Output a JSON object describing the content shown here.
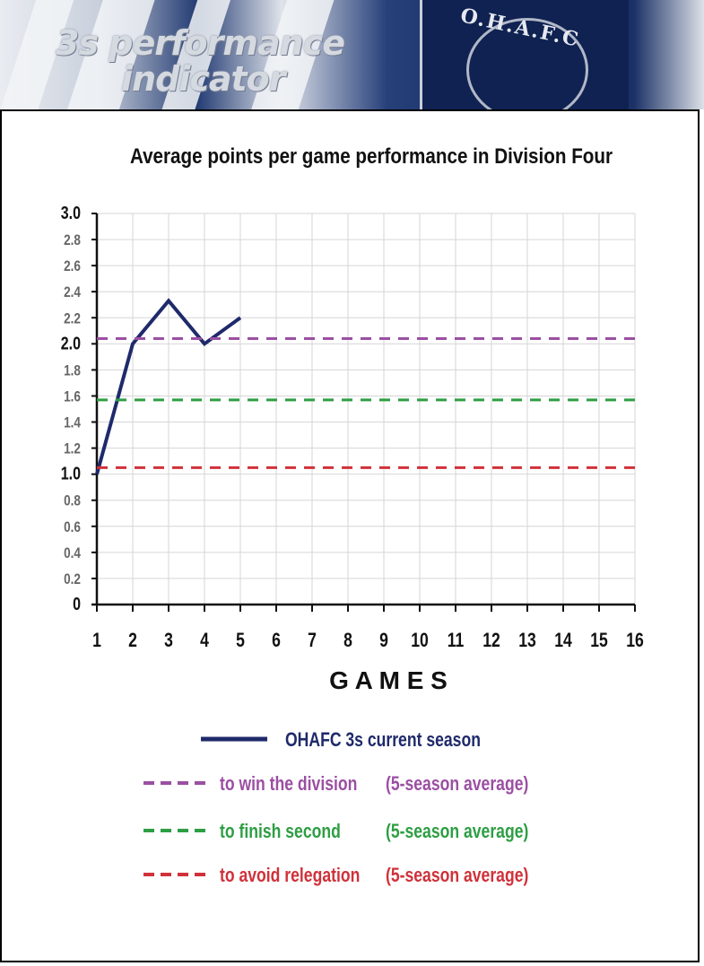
{
  "banner": {
    "title_line1": "3s performance",
    "title_line2": "indicator",
    "crest_text": "O.H.A.F.C"
  },
  "chart_data": {
    "type": "line",
    "title": "Average points per game performance in Division Four",
    "xlabel": "G A M E S",
    "ylabel": "",
    "xlim": [
      1,
      16
    ],
    "ylim": [
      0,
      3.0
    ],
    "x_ticks": [
      "1",
      "2",
      "3",
      "4",
      "5",
      "6",
      "7",
      "8",
      "9",
      "10",
      "11",
      "12",
      "13",
      "14",
      "15",
      "16"
    ],
    "y_ticks": [
      "0",
      "0.2",
      "0.4",
      "0.6",
      "0.8",
      "1.0",
      "1.2",
      "1.4",
      "1.6",
      "1.8",
      "2.0",
      "2.2",
      "2.4",
      "2.6",
      "2.8",
      "3.0"
    ],
    "bold_y_ticks": [
      "0",
      "1.0",
      "2.0",
      "3.0"
    ],
    "grid": true,
    "series": [
      {
        "name": "OHAFC 3s current season",
        "style": "solid",
        "color": "#1f2a6b",
        "x": [
          1,
          2,
          3,
          4,
          5
        ],
        "values": [
          1.0,
          2.0,
          2.33,
          2.0,
          2.2
        ]
      },
      {
        "name": "to win the division",
        "note": "(5-season average)",
        "style": "dashed",
        "color": "#9b4fa3",
        "values": [
          2.04
        ]
      },
      {
        "name": "to finish second",
        "note": "(5-season average)",
        "style": "dashed",
        "color": "#2e9e44",
        "values": [
          1.57
        ]
      },
      {
        "name": "to avoid relegation",
        "note": "(5-season average)",
        "style": "dashed",
        "color": "#d0313a",
        "values": [
          1.05
        ]
      }
    ],
    "legend_position": "bottom"
  }
}
